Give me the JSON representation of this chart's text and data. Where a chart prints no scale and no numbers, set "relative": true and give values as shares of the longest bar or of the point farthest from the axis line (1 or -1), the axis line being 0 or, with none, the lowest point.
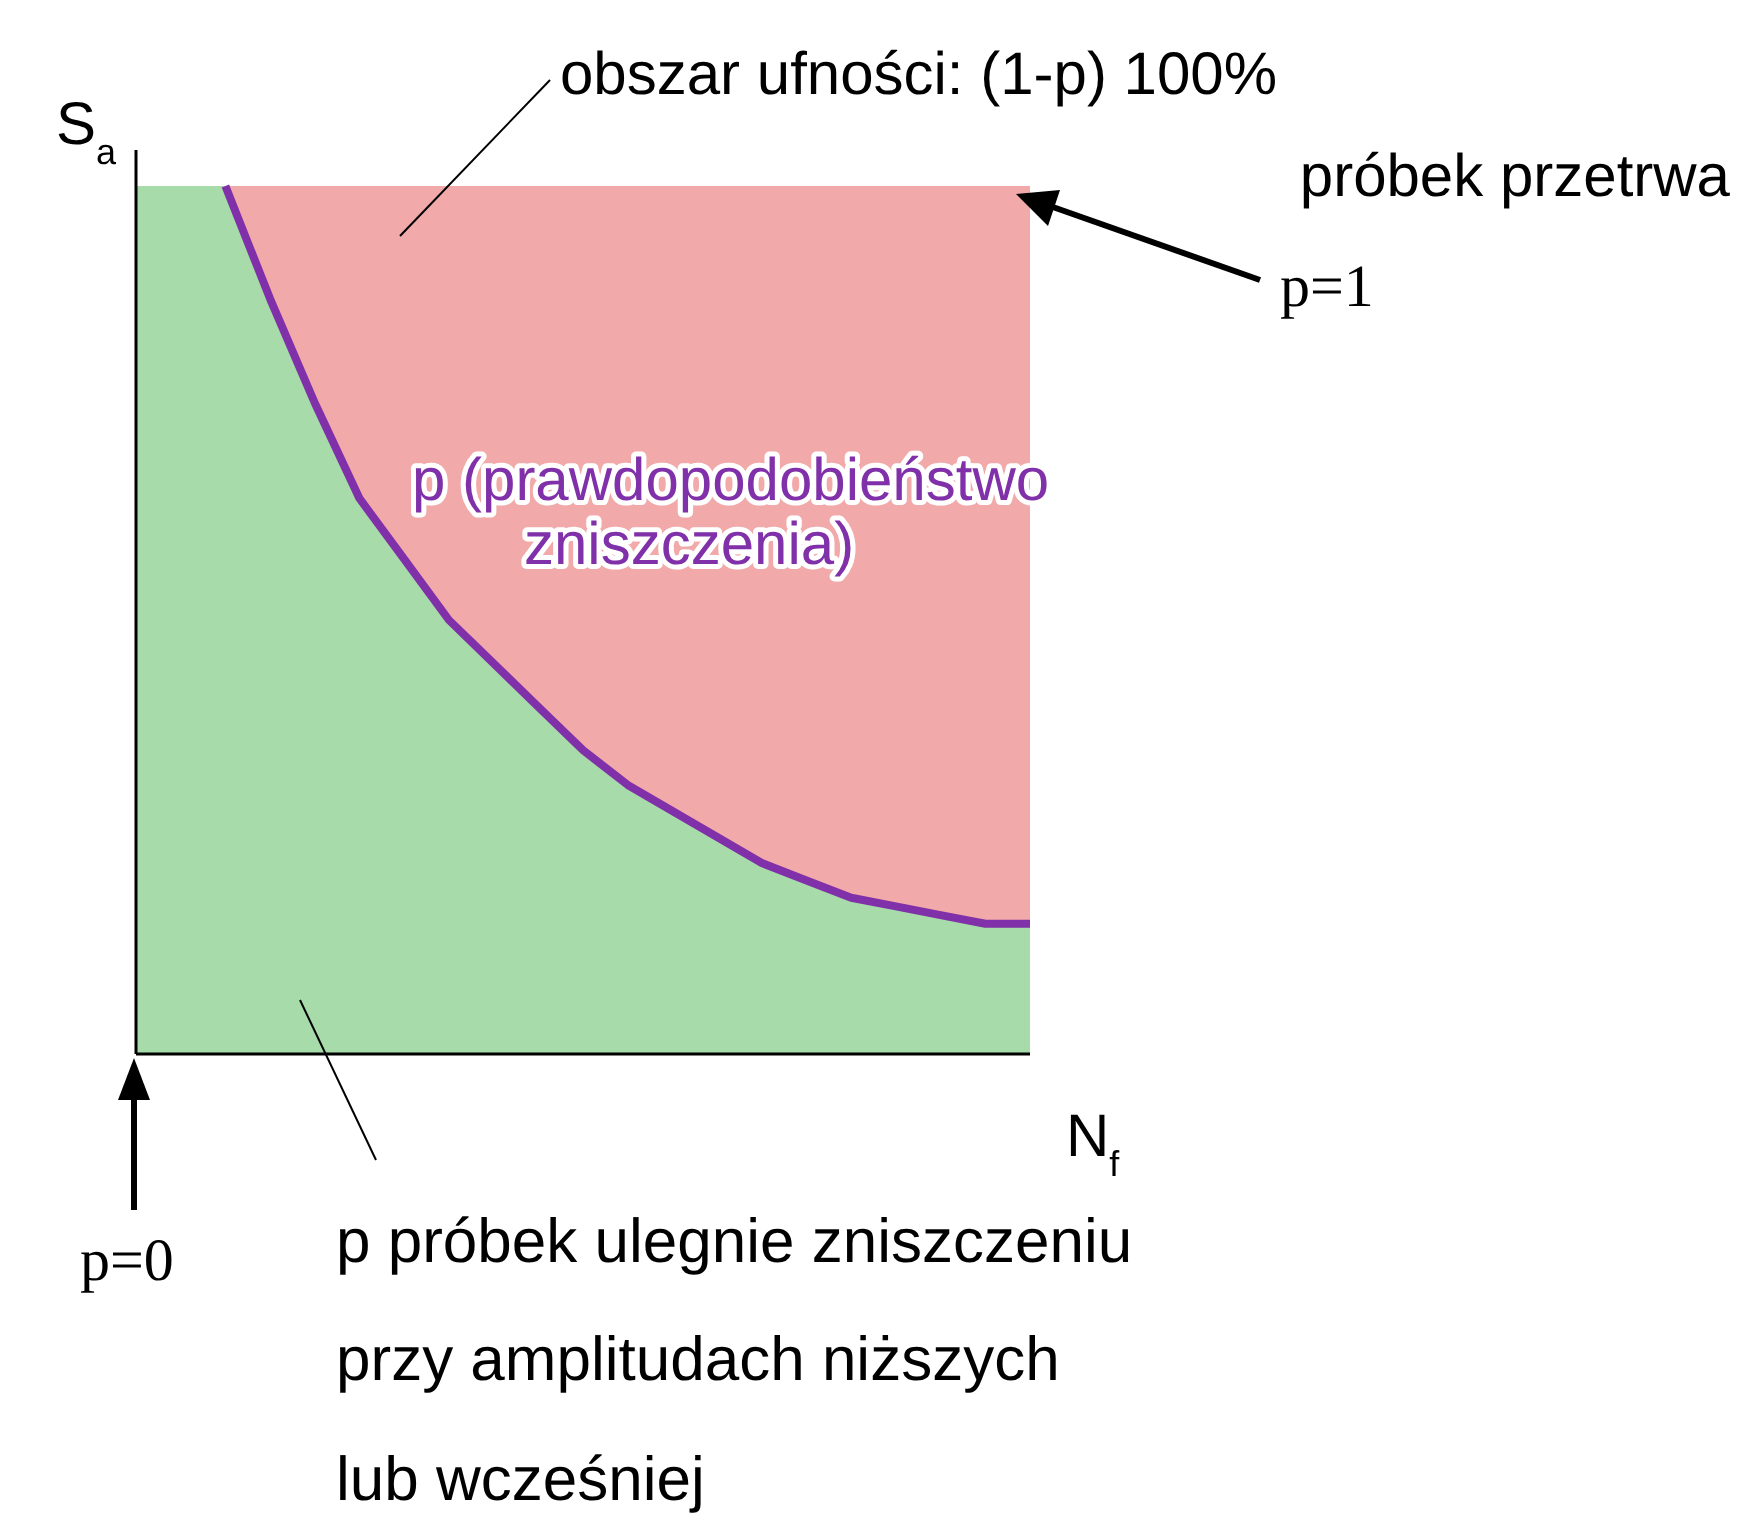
{
  "chart_data": {
    "type": "area",
    "relative": true,
    "xlabel": "N$_{f}$",
    "ylabel": "S$_{a}$",
    "categories": [
      null,
      null,
      null,
      null,
      null,
      null,
      null,
      null,
      null,
      null,
      null,
      null,
      null,
      null,
      null,
      null,
      null,
      null,
      null,
      null,
      null
    ],
    "series": [
      {
        "color": "#e04040",
        "values": [
          null,
          null,
          1,
          1,
          1,
          1,
          1,
          1,
          1,
          1,
          1,
          1,
          1,
          1,
          1,
          1,
          1,
          1,
          1,
          1,
          1
        ]
      },
      {
        "color": "#3cb043",
        "values": [
          1,
          1,
          1,
          0.87,
          0.75,
          0.64,
          0.57,
          0.5,
          0.45,
          0.4,
          0.35,
          0.31,
          0.28,
          0.25,
          0.22,
          0.2,
          0.18,
          0.17,
          0.16,
          0.15,
          0.15
        ]
      },
      {
        "type": "line",
        "name": "p (prawdopodobieństwo\nzniszczenia)",
        "color": "#8030a8",
        "values": [
          null,
          null,
          1,
          0.87,
          0.75,
          0.64,
          0.57,
          0.5,
          0.45,
          0.4,
          0.35,
          0.31,
          0.28,
          0.25,
          0.22,
          0.2,
          0.18,
          0.17,
          0.16,
          0.15,
          0.15
        ]
      }
    ],
    "annotations": [
      "obszar ufności: (1-p) 100%\npróbek przetrwa",
      "p=1",
      "p=0",
      "p próbek ulegnie zniszczeniu\nprzy amplitudach niższych\nlub wcześniej"
    ]
  }
}
